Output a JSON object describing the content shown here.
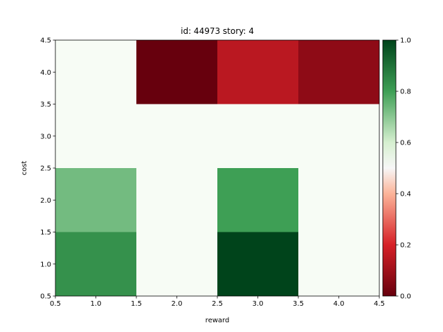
{
  "chart_data": {
    "type": "heatmap",
    "title": "id: 44973 story: 4",
    "xlabel": "reward",
    "ylabel": "cost",
    "xlim": [
      0.5,
      4.5
    ],
    "ylim": [
      0.5,
      4.5
    ],
    "x_categories": [
      1,
      2,
      3,
      4
    ],
    "y_categories": [
      1,
      2,
      3,
      4
    ],
    "x_ticks": [
      "0.5",
      "1.0",
      "1.5",
      "2.0",
      "2.5",
      "3.0",
      "3.5",
      "4.0",
      "4.5"
    ],
    "y_ticks": [
      "0.5",
      "1.0",
      "1.5",
      "2.0",
      "2.5",
      "3.0",
      "3.5",
      "4.0",
      "4.5"
    ],
    "values": [
      [
        0.83,
        0.5,
        1.0,
        0.5
      ],
      [
        0.73,
        0.5,
        0.8,
        0.5
      ],
      [
        0.5,
        0.5,
        0.5,
        0.5
      ],
      [
        0.5,
        0.0,
        0.15,
        0.07
      ]
    ],
    "colormap": "RdYlGn-like (red-white-green)",
    "colorbar": {
      "range": [
        0.0,
        1.0
      ],
      "ticks": [
        "0.0",
        "0.2",
        "0.4",
        "0.6",
        "0.8",
        "1.0"
      ]
    },
    "grid": false
  }
}
